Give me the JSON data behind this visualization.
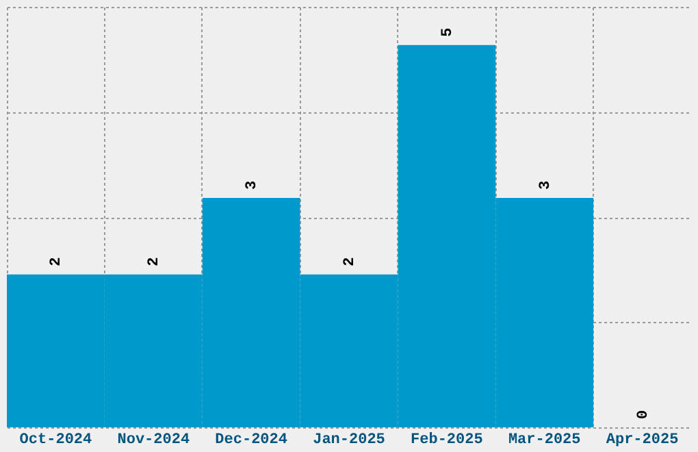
{
  "chart_data": {
    "type": "bar",
    "categories": [
      "Oct-2024",
      "Nov-2024",
      "Dec-2024",
      "Jan-2025",
      "Feb-2025",
      "Mar-2025",
      "Apr-2025"
    ],
    "values": [
      2,
      2,
      3,
      2,
      5,
      3,
      0
    ],
    "color": "#0099cc",
    "ylim": [
      0,
      5.5
    ],
    "yticks": [
      {
        "value": 0,
        "label": null
      },
      {
        "value": 1.375,
        "label": null
      },
      {
        "value": 2.75,
        "label": null
      },
      {
        "value": 4.125,
        "label": null
      },
      {
        "value": 5.5,
        "label": null
      }
    ],
    "grid": true,
    "tick_labels": "x",
    "data_labels": true
  }
}
